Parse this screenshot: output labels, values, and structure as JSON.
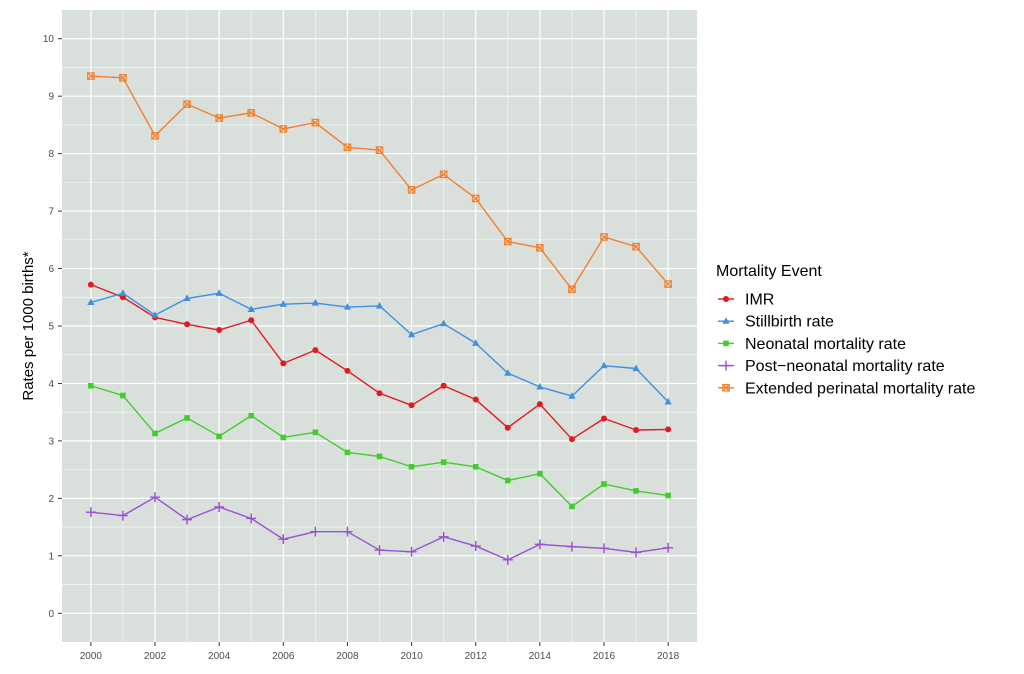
{
  "chart_data": {
    "type": "line",
    "title": "",
    "xlabel": "",
    "ylabel": "Rates per 1000 births*",
    "xlim": [
      1999.1,
      2018.9
    ],
    "ylim": [
      -0.5,
      10.5
    ],
    "x_ticks": [
      2000,
      2002,
      2004,
      2006,
      2008,
      2010,
      2012,
      2014,
      2016,
      2018
    ],
    "y_ticks": [
      0,
      1,
      2,
      3,
      4,
      5,
      6,
      7,
      8,
      9,
      10
    ],
    "x_tick_labels": [
      "2000",
      "2002",
      "2004",
      "2006",
      "2008",
      "2010",
      "2012",
      "2014",
      "2016",
      "2018"
    ],
    "y_tick_labels": [
      "0",
      "1",
      "2",
      "3",
      "4",
      "5",
      "6",
      "7",
      "8",
      "9",
      "10"
    ],
    "grid": true,
    "panel_background": "#d9e0dc",
    "legend": {
      "title": "Mortality Event",
      "position": "right"
    },
    "x": [
      2000,
      2001,
      2002,
      2003,
      2004,
      2005,
      2006,
      2007,
      2008,
      2009,
      2010,
      2011,
      2012,
      2013,
      2014,
      2015,
      2016,
      2017,
      2018
    ],
    "series": [
      {
        "name": "IMR",
        "color": "#e41a1c",
        "marker": "circle",
        "values": [
          5.72,
          5.5,
          5.15,
          5.03,
          4.93,
          5.1,
          4.35,
          4.58,
          4.22,
          3.83,
          3.62,
          3.96,
          3.72,
          3.23,
          3.64,
          3.03,
          3.39,
          3.19,
          3.2
        ]
      },
      {
        "name": "Stillbirth rate",
        "color": "#3f8fe3",
        "marker": "triangle",
        "values": [
          5.41,
          5.57,
          5.19,
          5.48,
          5.57,
          5.29,
          5.38,
          5.4,
          5.33,
          5.35,
          4.85,
          5.04,
          4.7,
          4.18,
          3.94,
          3.78,
          4.31,
          4.26,
          3.68
        ]
      },
      {
        "name": "Neonatal mortality rate",
        "color": "#44cc2f",
        "marker": "square",
        "values": [
          3.96,
          3.79,
          3.13,
          3.4,
          3.08,
          3.44,
          3.06,
          3.15,
          2.8,
          2.73,
          2.55,
          2.63,
          2.55,
          2.31,
          2.43,
          1.86,
          2.25,
          2.13,
          2.05
        ]
      },
      {
        "name": "Post−neonatal mortality rate",
        "color": "#9a4fd6",
        "marker": "plus",
        "values": [
          1.76,
          1.7,
          2.02,
          1.63,
          1.85,
          1.65,
          1.29,
          1.42,
          1.42,
          1.1,
          1.07,
          1.33,
          1.17,
          0.93,
          1.2,
          1.16,
          1.13,
          1.06,
          1.14
        ]
      },
      {
        "name": "Extended perinatal mortality rate",
        "color": "#f27f2e",
        "marker": "square-x",
        "values": [
          9.35,
          9.32,
          8.31,
          8.86,
          8.62,
          8.71,
          8.43,
          8.54,
          8.11,
          8.06,
          7.37,
          7.64,
          7.22,
          6.47,
          6.36,
          5.64,
          6.55,
          6.38,
          5.73
        ]
      }
    ]
  }
}
